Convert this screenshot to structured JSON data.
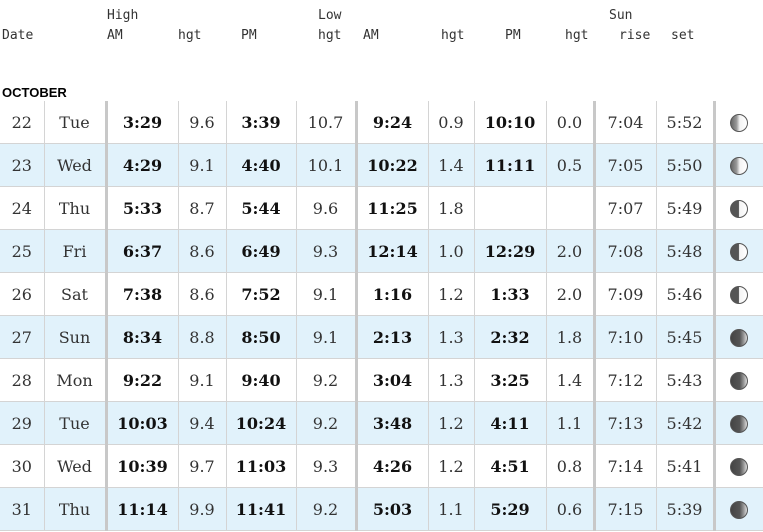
{
  "headers": {
    "date": "Date",
    "high_group": "High",
    "high_am": "AM",
    "high_am_hgt": "hgt",
    "high_pm": "PM",
    "low_group": "Low",
    "high_pm_hgt": "hgt",
    "low_am": "AM",
    "low_am_hgt": "hgt",
    "low_pm": "PM",
    "low_pm_hgt": "hgt",
    "sun_group": "Sun",
    "sun_rise": "rise",
    "sun_set": "set"
  },
  "month": "OCTOBER",
  "rows": [
    {
      "date": "22",
      "day": "Tue",
      "high_am": "3:29",
      "high_am_hgt": "9.6",
      "high_pm": "3:39",
      "high_pm_hgt": "10.7",
      "low_am": "9:24",
      "low_am_hgt": "0.9",
      "low_pm": "10:10",
      "low_pm_hgt": "0.0",
      "rise": "7:04",
      "set": "5:52",
      "moon": "waning-gibbous-icon"
    },
    {
      "date": "23",
      "day": "Wed",
      "high_am": "4:29",
      "high_am_hgt": "9.1",
      "high_pm": "4:40",
      "high_pm_hgt": "10.1",
      "low_am": "10:22",
      "low_am_hgt": "1.4",
      "low_pm": "11:11",
      "low_pm_hgt": "0.5",
      "rise": "7:05",
      "set": "5:50",
      "moon": "waning-gibbous-icon"
    },
    {
      "date": "24",
      "day": "Thu",
      "high_am": "5:33",
      "high_am_hgt": "8.7",
      "high_pm": "5:44",
      "high_pm_hgt": "9.6",
      "low_am": "11:25",
      "low_am_hgt": "1.8",
      "low_pm": "",
      "low_pm_hgt": "",
      "rise": "7:07",
      "set": "5:49",
      "moon": "last-quarter-icon"
    },
    {
      "date": "25",
      "day": "Fri",
      "high_am": "6:37",
      "high_am_hgt": "8.6",
      "high_pm": "6:49",
      "high_pm_hgt": "9.3",
      "low_am": "12:14",
      "low_am_hgt": "1.0",
      "low_pm": "12:29",
      "low_pm_hgt": "2.0",
      "rise": "7:08",
      "set": "5:48",
      "moon": "last-quarter-icon"
    },
    {
      "date": "26",
      "day": "Sat",
      "high_am": "7:38",
      "high_am_hgt": "8.6",
      "high_pm": "7:52",
      "high_pm_hgt": "9.1",
      "low_am": "1:16",
      "low_am_hgt": "1.2",
      "low_pm": "1:33",
      "low_pm_hgt": "2.0",
      "rise": "7:09",
      "set": "5:46",
      "moon": "last-quarter-icon"
    },
    {
      "date": "27",
      "day": "Sun",
      "high_am": "8:34",
      "high_am_hgt": "8.8",
      "high_pm": "8:50",
      "high_pm_hgt": "9.1",
      "low_am": "2:13",
      "low_am_hgt": "1.3",
      "low_pm": "2:32",
      "low_pm_hgt": "1.8",
      "rise": "7:10",
      "set": "5:45",
      "moon": "waning-crescent-icon"
    },
    {
      "date": "28",
      "day": "Mon",
      "high_am": "9:22",
      "high_am_hgt": "9.1",
      "high_pm": "9:40",
      "high_pm_hgt": "9.2",
      "low_am": "3:04",
      "low_am_hgt": "1.3",
      "low_pm": "3:25",
      "low_pm_hgt": "1.4",
      "rise": "7:12",
      "set": "5:43",
      "moon": "waning-crescent-icon"
    },
    {
      "date": "29",
      "day": "Tue",
      "high_am": "10:03",
      "high_am_hgt": "9.4",
      "high_pm": "10:24",
      "high_pm_hgt": "9.2",
      "low_am": "3:48",
      "low_am_hgt": "1.2",
      "low_pm": "4:11",
      "low_pm_hgt": "1.1",
      "rise": "7:13",
      "set": "5:42",
      "moon": "waning-crescent-icon"
    },
    {
      "date": "30",
      "day": "Wed",
      "high_am": "10:39",
      "high_am_hgt": "9.7",
      "high_pm": "11:03",
      "high_pm_hgt": "9.3",
      "low_am": "4:26",
      "low_am_hgt": "1.2",
      "low_pm": "4:51",
      "low_pm_hgt": "0.8",
      "rise": "7:14",
      "set": "5:41",
      "moon": "waning-crescent-icon"
    },
    {
      "date": "31",
      "day": "Thu",
      "high_am": "11:14",
      "high_am_hgt": "9.9",
      "high_pm": "11:41",
      "high_pm_hgt": "9.2",
      "low_am": "5:03",
      "low_am_hgt": "1.1",
      "low_pm": "5:29",
      "low_pm_hgt": "0.6",
      "rise": "7:15",
      "set": "5:39",
      "moon": "waning-crescent-icon"
    }
  ]
}
